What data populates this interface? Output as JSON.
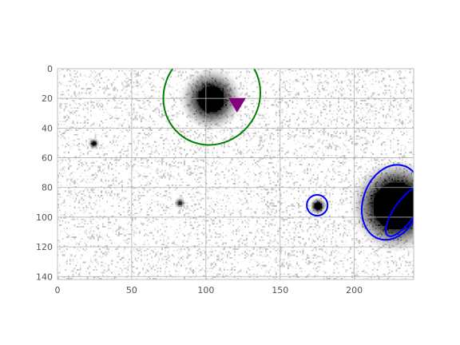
{
  "chart_data": {
    "type": "scatter",
    "title": "",
    "xlabel": "",
    "ylabel": "",
    "xlim": [
      0,
      240
    ],
    "ylim": [
      142,
      0
    ],
    "y_inverted": true,
    "grid": true,
    "x_ticks": [
      {
        "value": 0,
        "label": "0"
      },
      {
        "value": 50,
        "label": "50"
      },
      {
        "value": 100,
        "label": "100"
      },
      {
        "value": 150,
        "label": "150"
      },
      {
        "value": 200,
        "label": "200"
      }
    ],
    "y_ticks": [
      {
        "value": 0,
        "label": "0"
      },
      {
        "value": 20,
        "label": "20"
      },
      {
        "value": 40,
        "label": "40"
      },
      {
        "value": 60,
        "label": "60"
      },
      {
        "value": 80,
        "label": "80"
      },
      {
        "value": 100,
        "label": "100"
      },
      {
        "value": 120,
        "label": "120"
      },
      {
        "value": 140,
        "label": "140"
      }
    ],
    "background_image": {
      "kind": "grayscale-noise",
      "colormap": "gray_r",
      "sources": [
        {
          "x": 103,
          "y": 20,
          "radius": 9,
          "halo": 22
        },
        {
          "x": 228,
          "y": 92,
          "radius": 16,
          "halo": 32
        },
        {
          "x": 175,
          "y": 92,
          "radius": 2.4,
          "halo": 6
        },
        {
          "x": 24,
          "y": 50,
          "radius": 1.2,
          "halo": 4
        },
        {
          "x": 82,
          "y": 90,
          "radius": 1.0,
          "halo": 4
        }
      ]
    },
    "ellipses": [
      {
        "name": "",
        "color": "#008000",
        "cx": 104,
        "cy": 18,
        "rx": 32,
        "ry": 34,
        "angle": 35
      },
      {
        "name": "",
        "color": "#0000ff",
        "cx": 225,
        "cy": 90,
        "rx": 19,
        "ry": 26,
        "angle": 20
      },
      {
        "name": "",
        "color": "#0000ff",
        "cx": 234,
        "cy": 96,
        "rx": 7,
        "ry": 20,
        "angle": 35
      },
      {
        "name": "",
        "color": "#0000ff",
        "cx": 175,
        "cy": 92,
        "rx": 7,
        "ry": 7,
        "angle": 0
      }
    ],
    "markers": [
      {
        "name": "",
        "shape": "triangle-down",
        "color": "#800080",
        "x": 121,
        "y": 23
      }
    ]
  }
}
